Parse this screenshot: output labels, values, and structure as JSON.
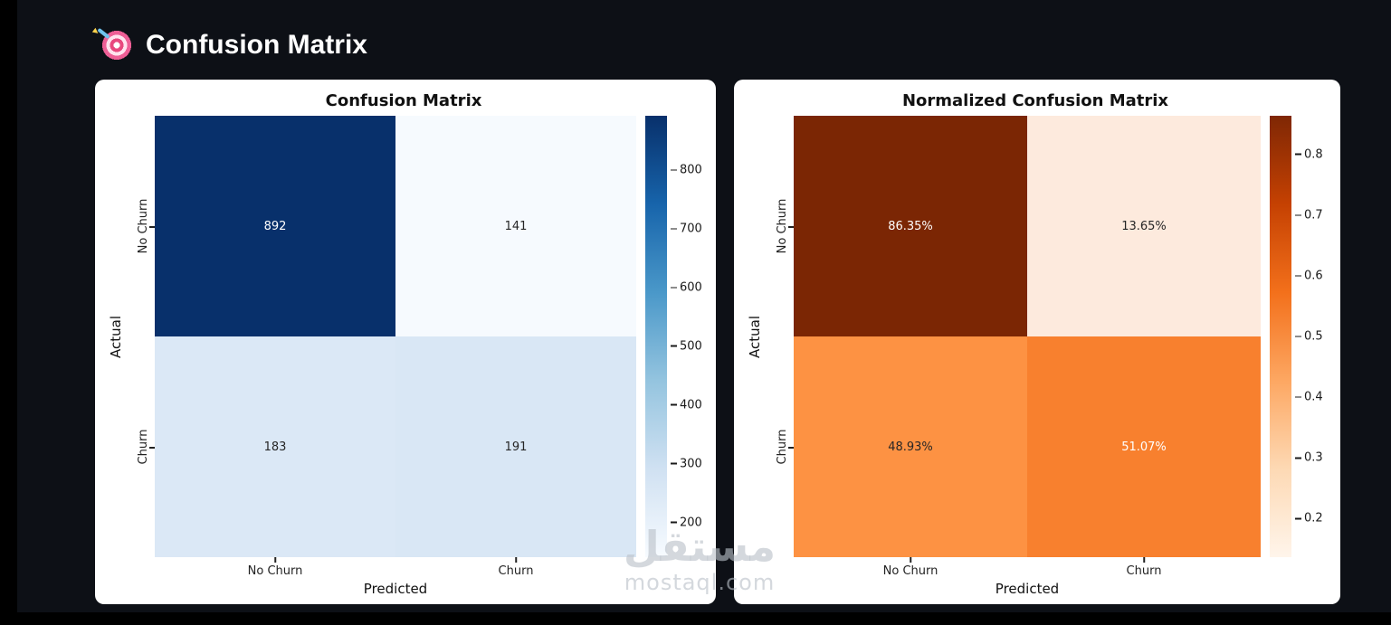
{
  "page": {
    "title": "Confusion Matrix",
    "icon": "target-dart-icon"
  },
  "watermark": {
    "arabic": "مستقل",
    "latin": "mostaql.com"
  },
  "colors": {
    "background": "#0d1016",
    "frame": "#000000",
    "card": "#ffffff",
    "title_text": "#ffffff"
  },
  "chart_data": [
    {
      "type": "heatmap",
      "title": "Confusion Matrix",
      "xlabel": "Predicted",
      "ylabel": "Actual",
      "x_categories": [
        "No Churn",
        "Churn"
      ],
      "y_categories": [
        "No Churn",
        "Churn"
      ],
      "values": [
        [
          892,
          141
        ],
        [
          183,
          191
        ]
      ],
      "cell_labels": [
        [
          "892",
          "141"
        ],
        [
          "183",
          "191"
        ]
      ],
      "cell_colors": [
        [
          "#08306b",
          "#f6fafe"
        ],
        [
          "#dbe8f6",
          "#d9e7f5"
        ]
      ],
      "cell_text_colors": [
        [
          "#ffffff",
          "#262626"
        ],
        [
          "#262626",
          "#262626"
        ]
      ],
      "colormap": "Blues",
      "colorbar": {
        "vmin": 141,
        "vmax": 892,
        "ticks": [
          {
            "label": "800",
            "value": 800
          },
          {
            "label": "700",
            "value": 700
          },
          {
            "label": "600",
            "value": 600
          },
          {
            "label": "500",
            "value": 500
          },
          {
            "label": "400",
            "value": 400
          },
          {
            "label": "300",
            "value": 300
          },
          {
            "label": "200",
            "value": 200
          }
        ],
        "gradient": [
          "#f7fbff",
          "#d0e1f2",
          "#94c4df",
          "#4a98c9",
          "#1764ab",
          "#08306b"
        ]
      }
    },
    {
      "type": "heatmap",
      "title": "Normalized Confusion Matrix",
      "xlabel": "Predicted",
      "ylabel": "Actual",
      "x_categories": [
        "No Churn",
        "Churn"
      ],
      "y_categories": [
        "No Churn",
        "Churn"
      ],
      "values": [
        [
          86.35,
          13.65
        ],
        [
          48.93,
          51.07
        ]
      ],
      "cell_labels": [
        [
          "86.35%",
          "13.65%"
        ],
        [
          "48.93%",
          "51.07%"
        ]
      ],
      "cell_colors": [
        [
          "#7b2604",
          "#fdeadd"
        ],
        [
          "#fd9243",
          "#f8802e"
        ]
      ],
      "cell_text_colors": [
        [
          "#ffffff",
          "#262626"
        ],
        [
          "#262626",
          "#ffffff"
        ]
      ],
      "colormap": "Oranges",
      "colorbar": {
        "vmin": 0.1365,
        "vmax": 0.8635,
        "ticks": [
          {
            "label": "0.8",
            "value": 0.8
          },
          {
            "label": "0.7",
            "value": 0.7
          },
          {
            "label": "0.6",
            "value": 0.6
          },
          {
            "label": "0.5",
            "value": 0.5
          },
          {
            "label": "0.4",
            "value": 0.4
          },
          {
            "label": "0.3",
            "value": 0.3
          },
          {
            "label": "0.2",
            "value": 0.2
          }
        ],
        "gradient": [
          "#fff5eb",
          "#fdd9b4",
          "#fda762",
          "#f3701b",
          "#c54102",
          "#7f2704"
        ]
      }
    }
  ]
}
